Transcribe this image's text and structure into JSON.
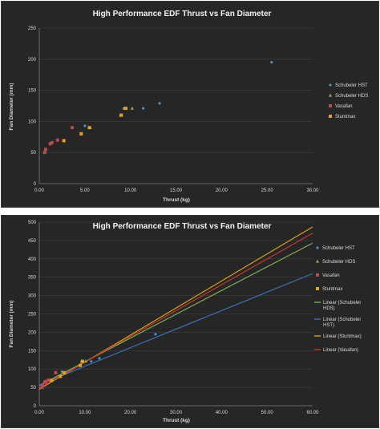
{
  "chart_data": [
    {
      "type": "scatter",
      "title": "High Performance EDF Thrust vs Fan Diameter",
      "xlabel": "Thrust (kg)",
      "ylabel": "Fan Diameter (mm)",
      "xlim": [
        0,
        30
      ],
      "ylim": [
        0,
        250
      ],
      "x_ticks": [
        "0.00",
        "5.00",
        "10.00",
        "15.00",
        "20.00",
        "25.00",
        "30.00"
      ],
      "y_ticks": [
        "0",
        "50",
        "100",
        "150",
        "200",
        "250"
      ],
      "grid": "horizontal",
      "legend_position": "right",
      "series": [
        {
          "name": "Schubeler HST",
          "color": "#4f8fd0",
          "marker": "diamond",
          "points": [
            [
              5.0,
              93
            ],
            [
              9.3,
              121
            ],
            [
              11.4,
              121
            ],
            [
              13.2,
              129
            ],
            [
              25.5,
              195
            ]
          ]
        },
        {
          "name": "Schubeler HDS",
          "color": "#8fb153",
          "marker": "triangle",
          "points": [
            [
              4.6,
              80
            ],
            [
              5.6,
              90
            ],
            [
              8.9,
              110
            ],
            [
              9.3,
              121
            ],
            [
              10.2,
              121
            ]
          ]
        },
        {
          "name": "Vasafan",
          "color": "#b84b4b",
          "marker": "square",
          "points": [
            [
              0.6,
              50
            ],
            [
              0.7,
              55
            ],
            [
              1.2,
              64
            ],
            [
              1.4,
              66
            ],
            [
              2.0,
              70
            ],
            [
              3.6,
              90
            ]
          ]
        },
        {
          "name": "Stuntmax",
          "color": "#e0a12b",
          "marker": "square",
          "points": [
            [
              2.7,
              69
            ],
            [
              4.6,
              80
            ],
            [
              5.5,
              90
            ],
            [
              9.0,
              110
            ],
            [
              9.5,
              121
            ]
          ]
        }
      ]
    },
    {
      "type": "scatter",
      "title": "High Performance EDF Thrust vs Fan Diameter",
      "xlabel": "Thrust (kg)",
      "ylabel": "Fan Diameter (mm)",
      "xlim": [
        0,
        60
      ],
      "ylim": [
        0,
        500
      ],
      "x_ticks": [
        "0.00",
        "10.00",
        "20.00",
        "30.00",
        "40.00",
        "50.00",
        "60.00"
      ],
      "y_ticks": [
        "0",
        "50",
        "100",
        "150",
        "200",
        "250",
        "300",
        "350",
        "400",
        "450",
        "500"
      ],
      "grid": "horizontal",
      "legend_position": "right",
      "series": [
        {
          "name": "Schubeler HST",
          "color": "#4f8fd0",
          "marker": "diamond",
          "points": [
            [
              5.0,
              93
            ],
            [
              9.3,
              121
            ],
            [
              11.4,
              121
            ],
            [
              13.2,
              129
            ],
            [
              25.5,
              195
            ]
          ]
        },
        {
          "name": "Schubeler HDS",
          "color": "#8fb153",
          "marker": "triangle",
          "points": [
            [
              4.6,
              80
            ],
            [
              5.6,
              90
            ],
            [
              8.9,
              110
            ],
            [
              9.3,
              121
            ],
            [
              10.2,
              121
            ]
          ]
        },
        {
          "name": "Vasafan",
          "color": "#b84b4b",
          "marker": "square",
          "points": [
            [
              0.6,
              50
            ],
            [
              0.7,
              55
            ],
            [
              1.2,
              64
            ],
            [
              1.4,
              66
            ],
            [
              2.0,
              70
            ],
            [
              3.6,
              90
            ]
          ]
        },
        {
          "name": "Stuntmax",
          "color": "#e0a12b",
          "marker": "square",
          "points": [
            [
              2.7,
              69
            ],
            [
              4.6,
              80
            ],
            [
              5.5,
              90
            ],
            [
              9.0,
              110
            ],
            [
              9.5,
              121
            ]
          ]
        }
      ],
      "trendlines": [
        {
          "name": "Linear (Schubeler HDS)",
          "color": "#7fab55",
          "from": [
            0,
            55
          ],
          "to": [
            60,
            443
          ]
        },
        {
          "name": "Linear (Schubeler HST)",
          "color": "#3f6fb0",
          "from": [
            0,
            57
          ],
          "to": [
            60,
            360
          ]
        },
        {
          "name": "Linear (Stuntmax)",
          "color": "#d4a020",
          "from": [
            0,
            45
          ],
          "to": [
            60,
            487
          ]
        },
        {
          "name": "Linear (Vasafan)",
          "color": "#c0392b",
          "from": [
            0,
            48
          ],
          "to": [
            60,
            470
          ]
        }
      ]
    }
  ]
}
